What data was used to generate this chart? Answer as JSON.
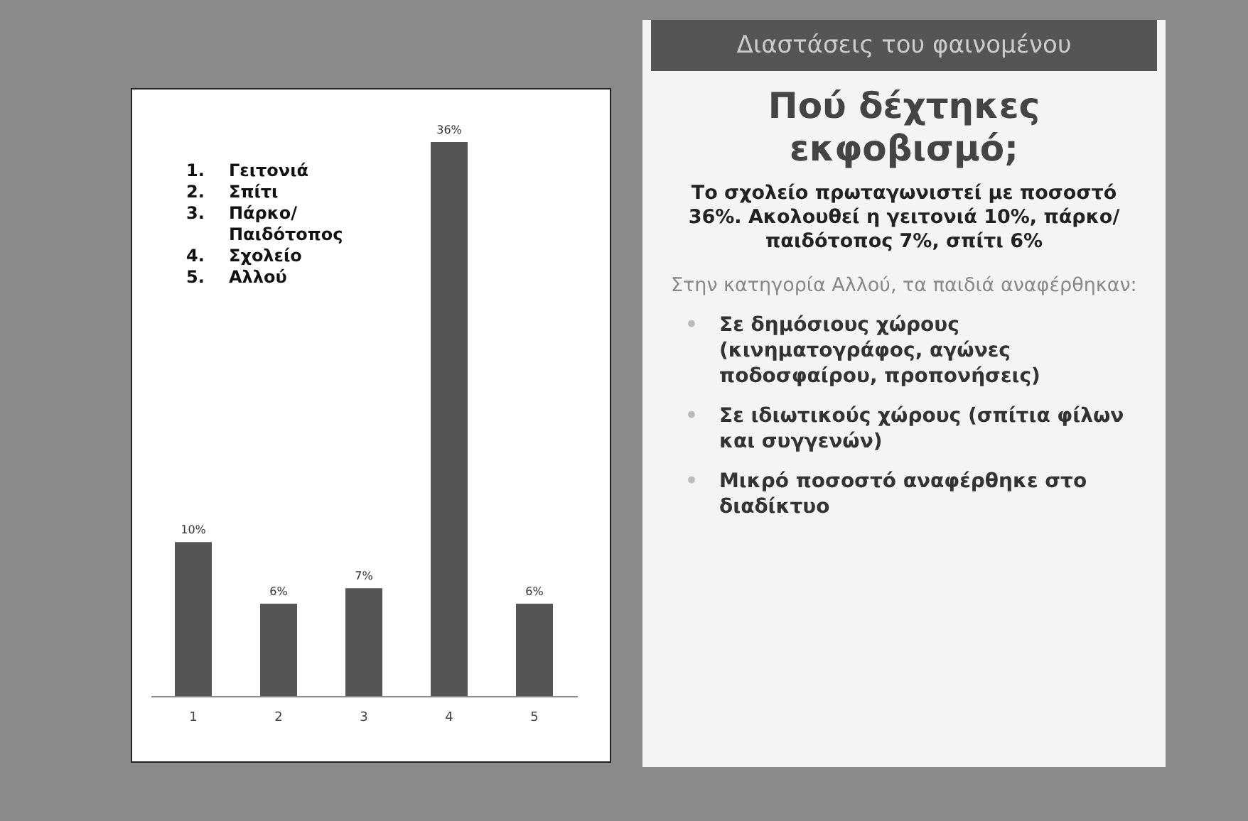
{
  "chart_data": {
    "type": "bar",
    "subtitle": "Διαστάσεις του φαινομένου",
    "title": "Πού δέχτηκες εκφοβισμό;",
    "categories": [
      "1",
      "2",
      "3",
      "4",
      "5"
    ],
    "values": [
      10,
      6,
      7,
      36,
      6
    ],
    "value_labels": [
      "10%",
      "6%",
      "7%",
      "36%",
      "6%"
    ],
    "color": "#555555",
    "annotations": [
      "1.\tΓειτονιά",
      "2.\tΣπίτι",
      "3.\tΠάρκο/ Παιδότοπος",
      "4.\tΣχολείο",
      "5.\tΑλλού",
      "Το σχολείο πρωταγωνιστεί με ποσοστό 36%. Ακολουθεί η γειτονιά 10%, πάρκο/παιδότοπος 7%, σπίτι 6%",
      "Στην κατηγορία Αλλού, τα παιδιά αναφέρθηκαν:",
      "•\tΣε δημόσιους χώρους (κινηματογράφος, αγώνες ποδοσφαίρου, προπονήσεις)",
      "•\tΣε ιδιωτικούς χώρους (σπίτια φίλων και συγγενών)",
      "•\tΜικρό ποσοστό αναφέρθηκε στο διαδίκτυο"
    ]
  }
}
